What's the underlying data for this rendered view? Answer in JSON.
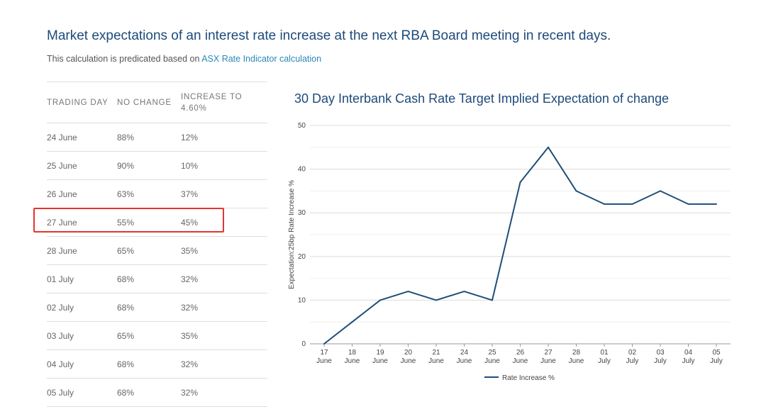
{
  "header": {
    "title": "Market expectations of an interest rate increase at the next RBA Board meeting in recent days.",
    "subtitle_prefix": "This calculation is predicated based on ",
    "subtitle_link": "ASX Rate Indicator calculation"
  },
  "table": {
    "headers": [
      "TRADING DAY",
      "NO CHANGE",
      "INCREASE TO 4.60%"
    ],
    "rows": [
      [
        "24 June",
        "88%",
        "12%"
      ],
      [
        "25 June",
        "90%",
        "10%"
      ],
      [
        "26 June",
        "63%",
        "37%"
      ],
      [
        "27 June",
        "55%",
        "45%"
      ],
      [
        "28 June",
        "65%",
        "35%"
      ],
      [
        "01 July",
        "68%",
        "32%"
      ],
      [
        "02 July",
        "68%",
        "32%"
      ],
      [
        "03 July",
        "65%",
        "35%"
      ],
      [
        "04 July",
        "68%",
        "32%"
      ],
      [
        "05 July",
        "68%",
        "32%"
      ]
    ],
    "highlighted_row": 3,
    "highlight_color": "#e3342f"
  },
  "chart_data": {
    "type": "line",
    "title": "30 Day Interbank Cash Rate Target Implied Expectation of change",
    "ylabel": "Expectation:25bp Rate Increase %",
    "xlabel": "",
    "ylim": [
      0,
      50
    ],
    "yticks": [
      0,
      10,
      20,
      30,
      40,
      50
    ],
    "grid": true,
    "legend_position": "bottom",
    "categories": [
      [
        "17",
        "June"
      ],
      [
        "18",
        "June"
      ],
      [
        "19",
        "June"
      ],
      [
        "20",
        "June"
      ],
      [
        "21",
        "June"
      ],
      [
        "24",
        "June"
      ],
      [
        "25",
        "June"
      ],
      [
        "26",
        "June"
      ],
      [
        "27",
        "June"
      ],
      [
        "28",
        "June"
      ],
      [
        "01",
        "July"
      ],
      [
        "02",
        "July"
      ],
      [
        "03",
        "July"
      ],
      [
        "04",
        "July"
      ],
      [
        "05",
        "July"
      ]
    ],
    "series": [
      {
        "name": "Rate Increase %",
        "color": "#1f4e79",
        "values": [
          0,
          5,
          10,
          12,
          10,
          12,
          10,
          37,
          45,
          35,
          32,
          32,
          35,
          32,
          32
        ]
      }
    ]
  }
}
